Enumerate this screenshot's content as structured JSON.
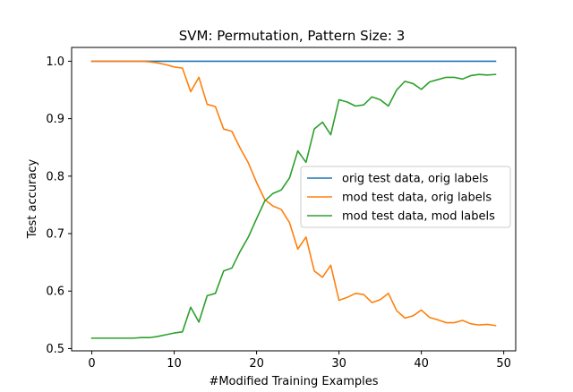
{
  "chart_data": {
    "type": "line",
    "title": "SVM: Permutation, Pattern Size: 3",
    "xlabel": "#Modified Training Examples",
    "ylabel": "Test accuracy",
    "xlim": [
      -2.45,
      51.45
    ],
    "ylim": [
      0.496,
      1.024
    ],
    "xticks": [
      0,
      10,
      20,
      30,
      40,
      50
    ],
    "yticks": [
      0.5,
      0.6,
      0.7,
      0.8,
      0.9,
      1.0
    ],
    "xtick_labels": [
      "0",
      "10",
      "20",
      "30",
      "40",
      "50"
    ],
    "ytick_labels": [
      "0.5",
      "0.6",
      "0.7",
      "0.8",
      "0.9",
      "1.0"
    ],
    "grid": false,
    "legend_position": "center-right",
    "x": [
      0,
      1,
      2,
      3,
      4,
      5,
      6,
      7,
      8,
      9,
      10,
      11,
      12,
      13,
      14,
      15,
      16,
      17,
      18,
      19,
      20,
      21,
      22,
      23,
      24,
      25,
      26,
      27,
      28,
      29,
      30,
      31,
      32,
      33,
      34,
      35,
      36,
      37,
      38,
      39,
      40,
      41,
      42,
      43,
      44,
      45,
      46,
      47,
      48,
      49
    ],
    "series": [
      {
        "name": "orig test data, orig labels",
        "color": "#1f77b4",
        "values": [
          1.0,
          1.0,
          1.0,
          1.0,
          1.0,
          1.0,
          1.0,
          1.0,
          1.0,
          1.0,
          1.0,
          1.0,
          1.0,
          1.0,
          1.0,
          1.0,
          1.0,
          1.0,
          1.0,
          1.0,
          1.0,
          1.0,
          1.0,
          1.0,
          1.0,
          1.0,
          1.0,
          1.0,
          1.0,
          1.0,
          1.0,
          1.0,
          1.0,
          1.0,
          1.0,
          1.0,
          1.0,
          1.0,
          1.0,
          1.0,
          1.0,
          1.0,
          1.0,
          1.0,
          1.0,
          1.0,
          1.0,
          1.0,
          1.0,
          1.0
        ]
      },
      {
        "name": "mod test data, orig labels",
        "color": "#ff7f0e",
        "values": [
          1.0,
          1.0,
          1.0,
          1.0,
          1.0,
          1.0,
          1.0,
          0.999,
          0.997,
          0.994,
          0.99,
          0.988,
          0.947,
          0.972,
          0.925,
          0.921,
          0.882,
          0.878,
          0.849,
          0.823,
          0.789,
          0.759,
          0.748,
          0.742,
          0.719,
          0.673,
          0.694,
          0.635,
          0.624,
          0.645,
          0.584,
          0.589,
          0.596,
          0.594,
          0.58,
          0.585,
          0.596,
          0.566,
          0.553,
          0.557,
          0.567,
          0.554,
          0.55,
          0.545,
          0.545,
          0.549,
          0.543,
          0.541,
          0.542,
          0.54
        ]
      },
      {
        "name": "mod test data, mod labels",
        "color": "#2ca02c",
        "values": [
          0.518,
          0.518,
          0.518,
          0.518,
          0.518,
          0.518,
          0.519,
          0.519,
          0.521,
          0.524,
          0.527,
          0.529,
          0.572,
          0.546,
          0.592,
          0.596,
          0.635,
          0.64,
          0.669,
          0.694,
          0.726,
          0.757,
          0.77,
          0.776,
          0.797,
          0.844,
          0.824,
          0.882,
          0.894,
          0.872,
          0.933,
          0.929,
          0.922,
          0.924,
          0.938,
          0.933,
          0.922,
          0.95,
          0.965,
          0.961,
          0.951,
          0.964,
          0.968,
          0.972,
          0.972,
          0.969,
          0.975,
          0.977,
          0.976,
          0.977
        ]
      }
    ]
  }
}
